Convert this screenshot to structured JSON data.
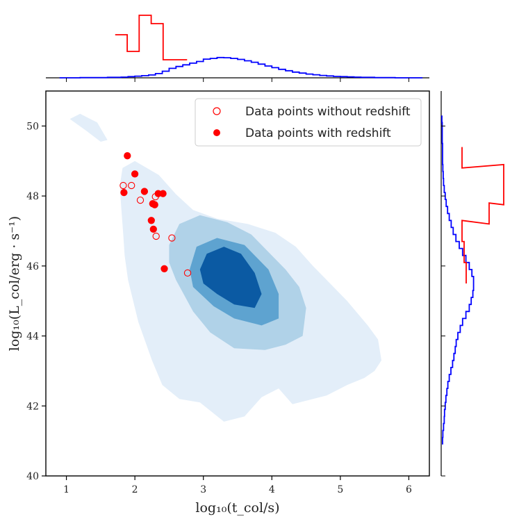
{
  "chart_data": {
    "type": "scatter",
    "title": "",
    "xlabel": "log₁₀(t_col/s)",
    "ylabel": "log₁₀(L_col/erg · s⁻¹)",
    "xlim": [
      0.7,
      6.3
    ],
    "ylim": [
      40,
      51
    ],
    "xticks": [
      1,
      2,
      3,
      4,
      5,
      6
    ],
    "yticks": [
      40,
      42,
      44,
      46,
      48,
      50
    ],
    "grid": false,
    "legend_position": "top-right",
    "colors": {
      "points": "#ff0000",
      "kde_levels": [
        "#e3eef9",
        "#b0d2e8",
        "#5ea3d0",
        "#0b5aa3"
      ],
      "marginal_population": "#0000ff",
      "marginal_data": "#ff0000",
      "axes": "#000000"
    },
    "legend": [
      {
        "label": "Data points without redshift",
        "marker": "open-circle"
      },
      {
        "label": "Data points with redshift",
        "marker": "filled-circle"
      }
    ],
    "series": [
      {
        "name": "Data points without redshift",
        "marker": "open-circle",
        "x": [
          1.83,
          1.95,
          2.08,
          2.3,
          2.31,
          2.54,
          2.77
        ],
        "y": [
          48.3,
          48.3,
          47.88,
          47.98,
          46.85,
          46.8,
          45.8
        ]
      },
      {
        "name": "Data points with redshift",
        "marker": "filled-circle",
        "x": [
          1.89,
          2.0,
          2.14,
          1.84,
          2.34,
          2.41,
          2.26,
          2.29,
          2.24,
          2.27,
          2.43
        ],
        "y": [
          49.15,
          48.63,
          48.13,
          48.1,
          48.07,
          48.07,
          47.78,
          47.75,
          47.3,
          47.05,
          45.92
        ]
      }
    ],
    "kde_contours": {
      "levels": [
        [
          [
            1.05,
            50.2
          ],
          [
            1.2,
            50.35
          ],
          [
            1.45,
            50.1
          ],
          [
            1.6,
            49.6
          ],
          [
            1.5,
            49.55
          ],
          [
            1.3,
            49.85
          ]
        ],
        [
          [
            1.82,
            48.8
          ],
          [
            2.0,
            49.0
          ],
          [
            2.35,
            48.6
          ],
          [
            2.6,
            48.05
          ],
          [
            2.85,
            47.6
          ],
          [
            3.2,
            47.35
          ],
          [
            3.65,
            47.2
          ],
          [
            4.05,
            46.95
          ],
          [
            4.35,
            46.55
          ],
          [
            4.6,
            46.0
          ],
          [
            4.85,
            45.5
          ],
          [
            5.1,
            45.0
          ],
          [
            5.4,
            44.3
          ],
          [
            5.55,
            43.9
          ],
          [
            5.6,
            43.3
          ],
          [
            5.5,
            43.0
          ],
          [
            5.35,
            42.8
          ],
          [
            5.1,
            42.6
          ],
          [
            4.8,
            42.3
          ],
          [
            4.6,
            42.2
          ],
          [
            4.3,
            42.05
          ],
          [
            4.1,
            42.5
          ],
          [
            3.85,
            42.25
          ],
          [
            3.6,
            41.7
          ],
          [
            3.3,
            41.55
          ],
          [
            2.95,
            42.1
          ],
          [
            2.65,
            42.2
          ],
          [
            2.4,
            42.6
          ],
          [
            2.25,
            43.3
          ],
          [
            2.05,
            44.4
          ],
          [
            1.9,
            45.6
          ],
          [
            1.85,
            46.3
          ],
          [
            1.83,
            46.9
          ],
          [
            1.8,
            47.7
          ],
          [
            1.78,
            48.3
          ]
        ],
        [
          [
            2.5,
            46.6
          ],
          [
            2.65,
            47.2
          ],
          [
            2.95,
            47.45
          ],
          [
            3.35,
            47.25
          ],
          [
            3.7,
            46.9
          ],
          [
            3.95,
            46.4
          ],
          [
            4.2,
            45.9
          ],
          [
            4.4,
            45.4
          ],
          [
            4.5,
            44.8
          ],
          [
            4.45,
            44.0
          ],
          [
            4.2,
            43.75
          ],
          [
            3.9,
            43.6
          ],
          [
            3.45,
            43.65
          ],
          [
            3.1,
            44.1
          ],
          [
            2.85,
            44.7
          ],
          [
            2.6,
            45.6
          ],
          [
            2.5,
            46.1
          ]
        ],
        [
          [
            2.8,
            45.9
          ],
          [
            2.9,
            46.55
          ],
          [
            3.2,
            46.8
          ],
          [
            3.6,
            46.6
          ],
          [
            3.95,
            45.9
          ],
          [
            4.1,
            45.2
          ],
          [
            4.1,
            44.5
          ],
          [
            3.85,
            44.3
          ],
          [
            3.45,
            44.5
          ],
          [
            3.15,
            44.85
          ],
          [
            2.85,
            45.4
          ]
        ],
        [
          [
            2.95,
            45.9
          ],
          [
            3.05,
            46.35
          ],
          [
            3.3,
            46.55
          ],
          [
            3.55,
            46.35
          ],
          [
            3.75,
            45.8
          ],
          [
            3.85,
            45.2
          ],
          [
            3.75,
            44.8
          ],
          [
            3.45,
            44.9
          ],
          [
            3.2,
            45.2
          ],
          [
            3.0,
            45.5
          ]
        ]
      ]
    },
    "marginal_x": {
      "population": {
        "x": [
          0.95,
          1.05,
          1.15,
          1.25,
          1.35,
          1.45,
          1.55,
          1.65,
          1.75,
          1.85,
          1.95,
          2.05,
          2.15,
          2.25,
          2.35,
          2.45,
          2.55,
          2.65,
          2.75,
          2.85,
          2.95,
          3.05,
          3.15,
          3.25,
          3.35,
          3.45,
          3.55,
          3.65,
          3.75,
          3.85,
          3.95,
          4.05,
          4.15,
          4.25,
          4.35,
          4.45,
          4.55,
          4.65,
          4.75,
          4.85,
          4.95,
          5.05,
          5.15,
          5.25,
          5.35,
          5.45,
          5.55,
          5.65,
          5.75,
          5.85,
          5.95,
          6.05,
          6.15
        ],
        "counts": [
          0.0,
          0.0,
          0.0,
          0.01,
          0.01,
          0.01,
          0.01,
          0.02,
          0.02,
          0.03,
          0.05,
          0.07,
          0.09,
          0.12,
          0.18,
          0.28,
          0.4,
          0.48,
          0.55,
          0.62,
          0.69,
          0.79,
          0.82,
          0.86,
          0.85,
          0.82,
          0.78,
          0.72,
          0.66,
          0.58,
          0.5,
          0.43,
          0.36,
          0.3,
          0.24,
          0.2,
          0.16,
          0.13,
          0.1,
          0.08,
          0.06,
          0.05,
          0.04,
          0.03,
          0.02,
          0.02,
          0.01,
          0.01,
          0.01,
          0.0,
          0.0,
          0.0,
          0.0
        ]
      },
      "data": {
        "x": [
          1.8,
          1.975,
          2.15,
          2.325,
          2.5,
          2.675
        ],
        "counts": [
          0.6,
          0.3,
          0.95,
          0.8,
          0.15,
          0.15
        ]
      }
    },
    "marginal_y": {
      "population": {
        "y": [
          41.0,
          41.2,
          41.4,
          41.6,
          41.8,
          42.0,
          42.2,
          42.4,
          42.6,
          42.8,
          43.0,
          43.2,
          43.4,
          43.6,
          43.8,
          44.0,
          44.2,
          44.4,
          44.6,
          44.8,
          45.0,
          45.2,
          45.4,
          45.6,
          45.8,
          46.0,
          46.2,
          46.4,
          46.6,
          46.8,
          47.0,
          47.2,
          47.4,
          47.6,
          47.8,
          48.0,
          48.2,
          48.4,
          48.6,
          48.8,
          49.0,
          49.2,
          49.4,
          49.6,
          49.8,
          50.0,
          50.2
        ],
        "counts": [
          0.02,
          0.03,
          0.05,
          0.07,
          0.08,
          0.1,
          0.12,
          0.15,
          0.18,
          0.22,
          0.27,
          0.32,
          0.36,
          0.4,
          0.43,
          0.48,
          0.55,
          0.62,
          0.72,
          0.82,
          0.88,
          0.93,
          0.95,
          0.95,
          0.9,
          0.82,
          0.72,
          0.62,
          0.52,
          0.42,
          0.34,
          0.28,
          0.22,
          0.17,
          0.13,
          0.1,
          0.07,
          0.05,
          0.04,
          0.03,
          0.02,
          0.02,
          0.02,
          0.01,
          0.01,
          0.01,
          0.0
        ]
      },
      "data": {
        "y": [
          45.8,
          46.4,
          47.0,
          47.5,
          48.05,
          48.6,
          49.1
        ],
        "counts": [
          0.1,
          0.05,
          0.0,
          0.65,
          1.0,
          1.0,
          0.0
        ]
      }
    }
  }
}
